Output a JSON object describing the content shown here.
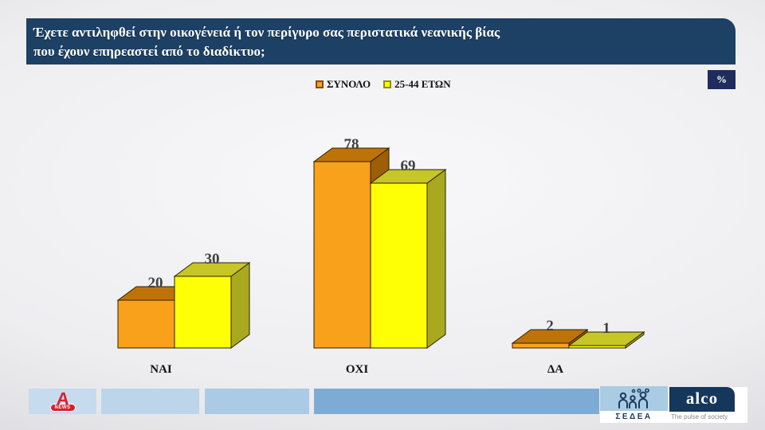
{
  "header": {
    "title_line1": "Έχετε αντιληφθεί στην οικογένειά ή τον περίγυρο σας περιστατικά νεανικής βίας",
    "title_line2": "που έχουν επηρεαστεί από το διαδίκτυο;",
    "unit_badge": "%"
  },
  "chart_data": {
    "type": "bar",
    "style": "3d-grouped-bars",
    "title": "Έχετε αντιληφθεί στην οικογένειά ή τον περίγυρο σας περιστατικά νεανικής βίας που έχουν επηρεαστεί από το διαδίκτυο;",
    "unit": "%",
    "categories": [
      "ΝΑΙ",
      "ΟΧΙ",
      "ΔΑ"
    ],
    "series": [
      {
        "name": "ΣΥΝΟΛΟ",
        "values": [
          20,
          78,
          2
        ],
        "color_front": "#F9A11B",
        "color_top": "#BE7309",
        "color_side": "#9C5E06",
        "legend_border": "#8A4A05"
      },
      {
        "name": "25-44 ΕΤΩΝ",
        "values": [
          30,
          69,
          1
        ],
        "color_front": "#FEFE05",
        "color_top": "#C6C626",
        "color_side": "#A9A91F",
        "legend_border": "#8F8F00"
      }
    ],
    "ylim": [
      0,
      100
    ],
    "legend_position": "top-center",
    "value_labels": true,
    "gridlines": false
  },
  "footer": {
    "alpha_a": "A",
    "alpha_news_label": "NEWS",
    "sedea_label": "ΣΕΔΕΑ",
    "alco_name": "alco",
    "alco_tagline": "The pulse of society"
  },
  "colors": {
    "title_navy": "#1D4065",
    "badge_navy": "#1F2D5C",
    "alco_navy": "#16375C",
    "alpha_red": "#D6202F",
    "value_label": "#3F3F3F",
    "outline": "#2a2000"
  }
}
